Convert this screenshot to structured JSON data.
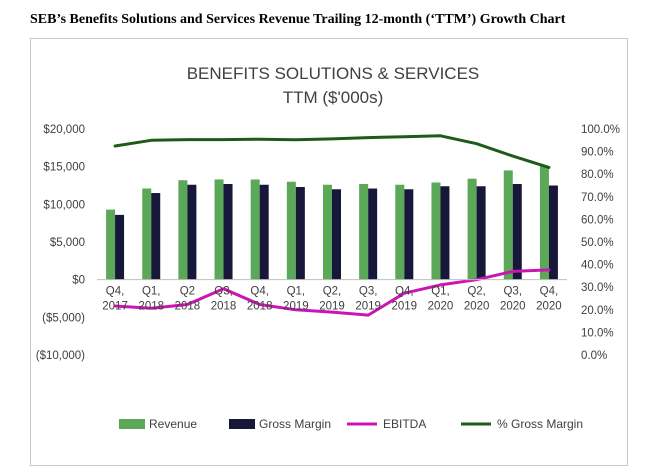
{
  "page": {
    "heading": "SEB’s Benefits Solutions and Services Revenue Trailing 12-month (‘TTM’) Growth Chart"
  },
  "chart_data": {
    "type": "bar",
    "title": "BENEFITS SOLUTIONS & SERVICES",
    "subtitle": "TTM ($'000s)",
    "categories": [
      [
        "Q4,",
        "2017"
      ],
      [
        "Q1,",
        "2018"
      ],
      [
        "Q2",
        "2018"
      ],
      [
        "Q3,",
        "2018"
      ],
      [
        "Q4,",
        "2018"
      ],
      [
        "Q1,",
        "2019"
      ],
      [
        "Q2,",
        "2019"
      ],
      [
        "Q3,",
        "2019"
      ],
      [
        "Q4,",
        "2019"
      ],
      [
        "Q1,",
        "2020"
      ],
      [
        "Q2,",
        "2020"
      ],
      [
        "Q3,",
        "2020"
      ],
      [
        "Q4,",
        "2020"
      ]
    ],
    "y_left": {
      "min": -10000,
      "max": 20000,
      "step": 5000,
      "tick_labels": [
        "($10,000)",
        "($5,000)",
        "$0",
        "$5,000",
        "$10,000",
        "$15,000",
        "$20,000"
      ]
    },
    "y_right": {
      "min": 0,
      "max": 100,
      "step": 10,
      "tick_labels": [
        "0.0%",
        "10.0%",
        "20.0%",
        "30.0%",
        "40.0%",
        "50.0%",
        "60.0%",
        "70.0%",
        "80.0%",
        "90.0%",
        "100.0%"
      ]
    },
    "grid": false,
    "legend_position": "bottom",
    "series": [
      {
        "name": "Revenue",
        "kind": "bar",
        "axis": "left",
        "color": "#5aa858",
        "values": [
          9300,
          12100,
          13200,
          13300,
          13300,
          13000,
          12600,
          12700,
          12600,
          12900,
          13400,
          14500,
          15100
        ]
      },
      {
        "name": "Gross Margin",
        "kind": "bar",
        "axis": "left",
        "color": "#17173a",
        "values": [
          8600,
          11500,
          12600,
          12700,
          12600,
          12300,
          12000,
          12100,
          12000,
          12400,
          12400,
          12700,
          12500
        ]
      },
      {
        "name": "EBITDA",
        "kind": "line",
        "axis": "left",
        "color": "#cc14b4",
        "values": [
          -3500,
          -3800,
          -3300,
          -1200,
          -3300,
          -4000,
          -4300,
          -4700,
          -1800,
          -700,
          0,
          1100,
          1300
        ]
      },
      {
        "name": "% Gross Margin",
        "kind": "line",
        "axis": "right",
        "color": "#1f5a1a",
        "values": [
          92.5,
          95.0,
          95.3,
          95.3,
          95.5,
          95.2,
          95.6,
          96.2,
          96.6,
          97.0,
          93.5,
          88.0,
          83.0
        ]
      }
    ]
  }
}
